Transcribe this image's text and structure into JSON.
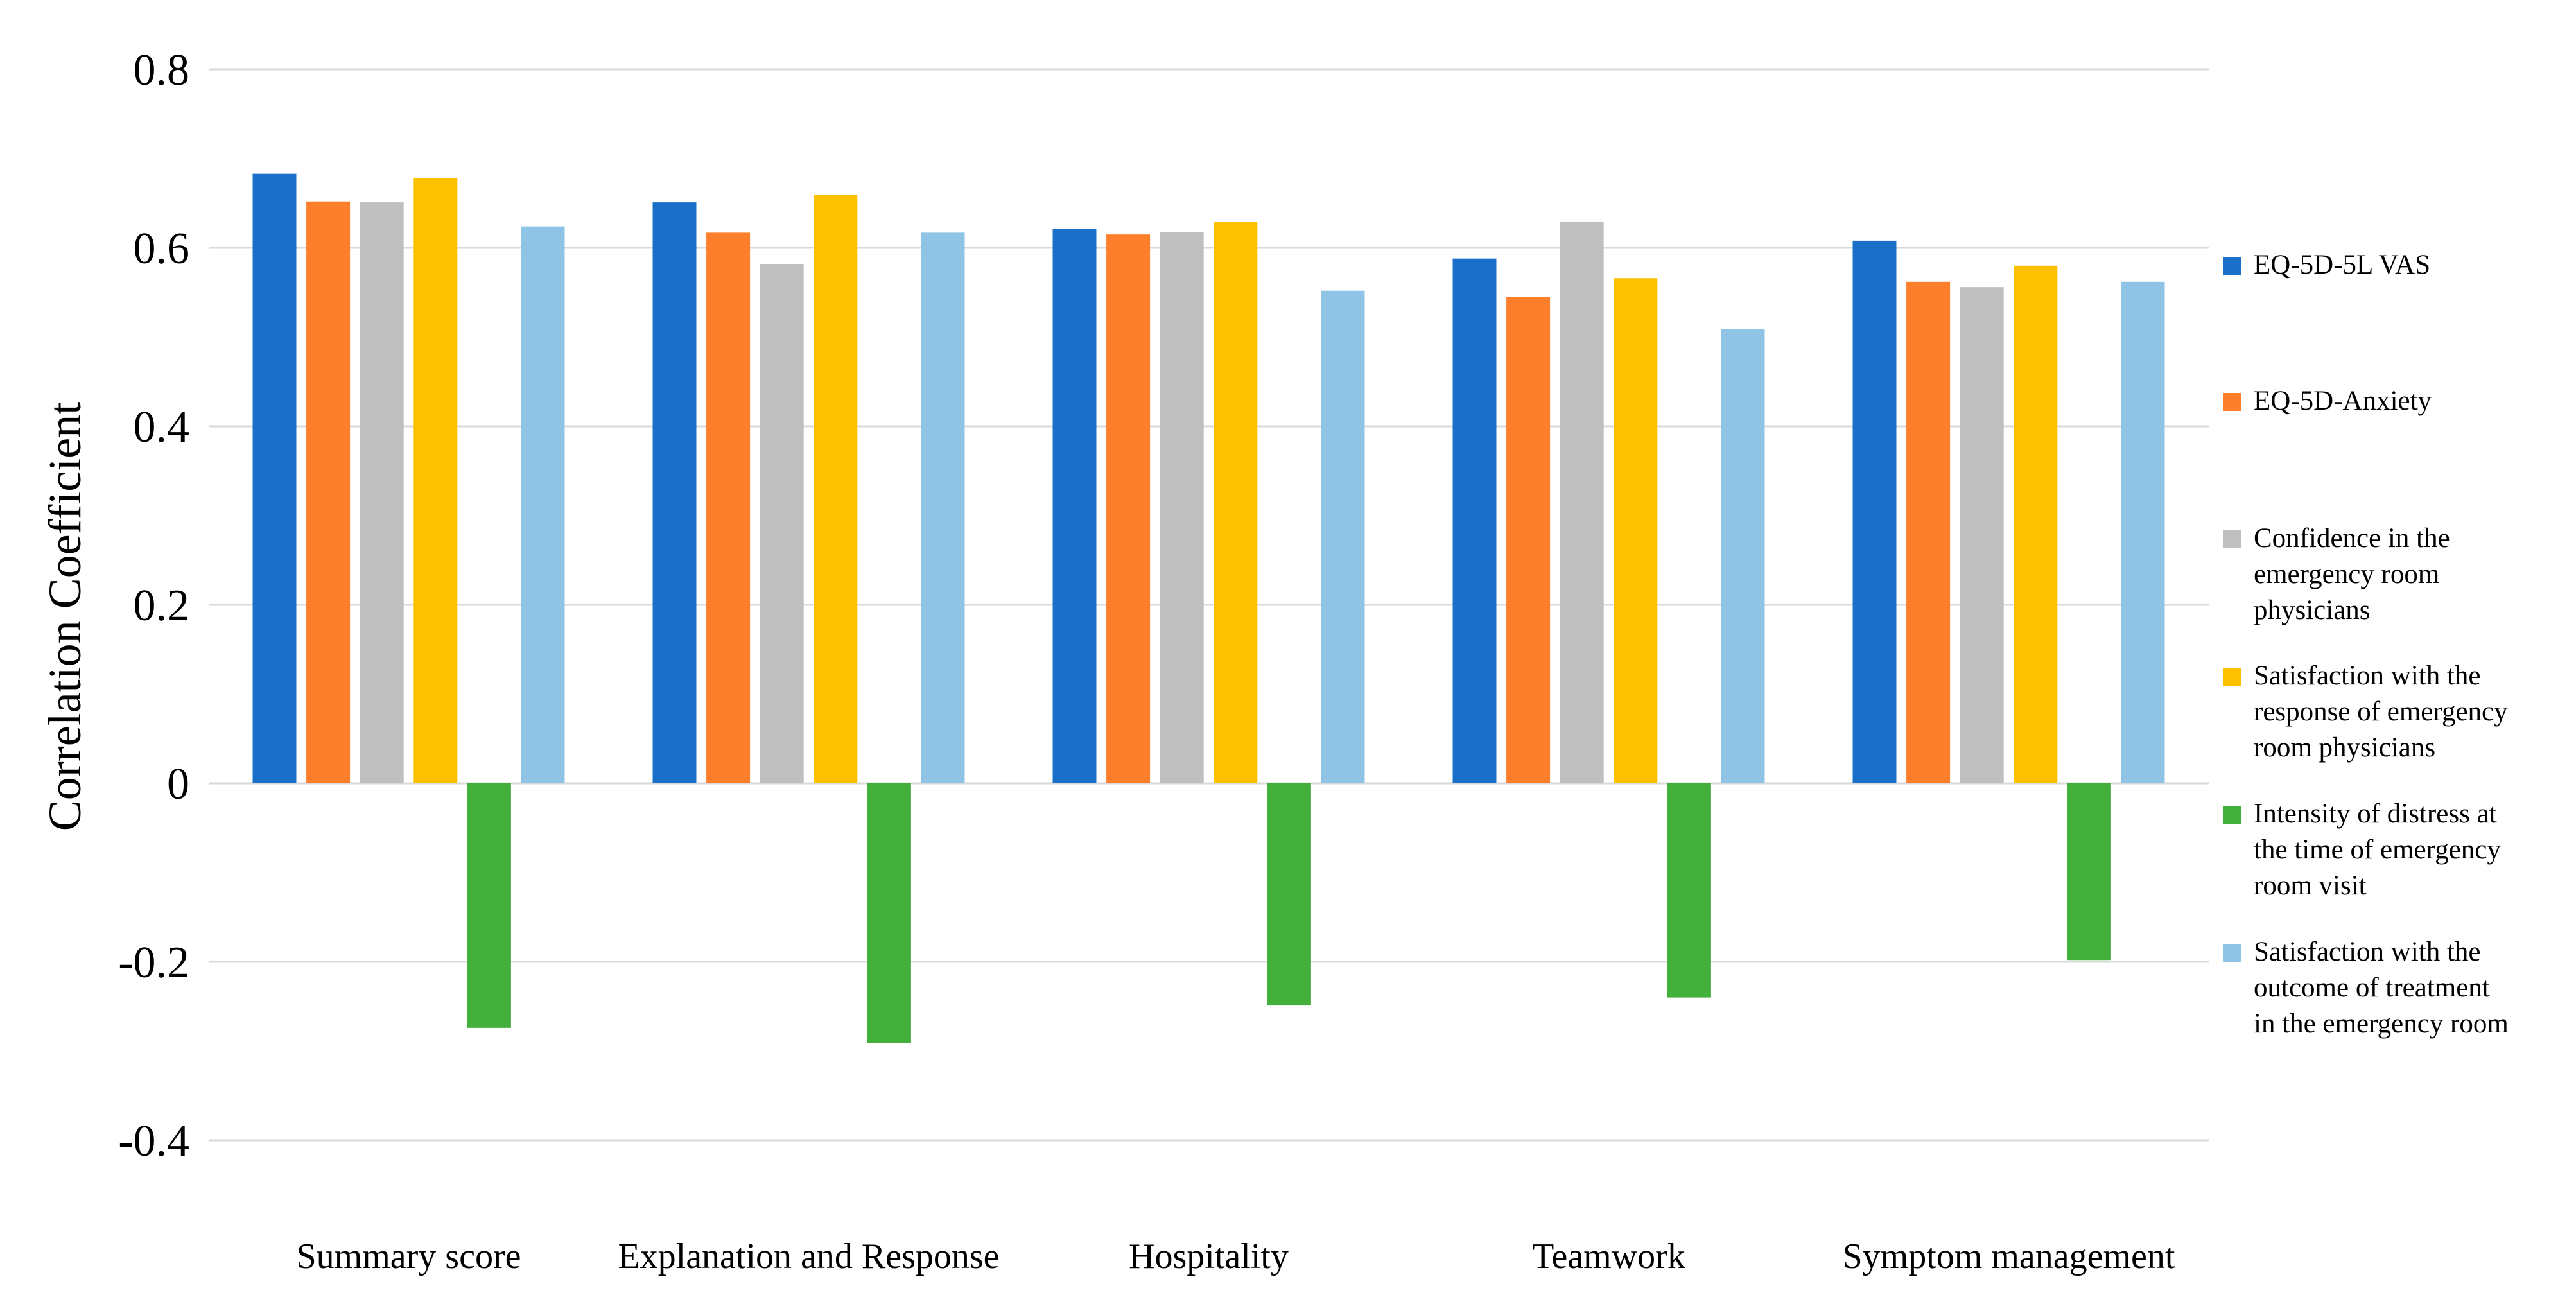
{
  "chart_data": {
    "type": "bar",
    "title": "",
    "xlabel": "",
    "ylabel": "Correlation Coefficient",
    "ylim": [
      -0.4,
      0.8
    ],
    "yticks": [
      0.8,
      0.6,
      0.4,
      0.2,
      0,
      -0.2,
      -0.4
    ],
    "ytick_labels": [
      "0.8",
      "0.6",
      "0.4",
      "0.2",
      "0",
      "-0.2",
      "-0.4"
    ],
    "grid": true,
    "legend_position": "right",
    "categories": [
      "Summary score",
      "Explanation and Response",
      "Hospitality",
      "Teamwork",
      "Symptom management"
    ],
    "series": [
      {
        "name": "EQ-5D-5L VAS",
        "legend_lines": [
          "EQ-5D-5L VAS"
        ],
        "color": "#1a70c8",
        "values": [
          0.683,
          0.651,
          0.621,
          0.588,
          0.608
        ]
      },
      {
        "name": "EQ-5D-Anxiety",
        "legend_lines": [
          "EQ-5D-Anxiety"
        ],
        "color": "#fd7f2c",
        "values": [
          0.652,
          0.617,
          0.615,
          0.545,
          0.562
        ]
      },
      {
        "name": "Confidence in the emergency room physicians",
        "legend_lines": [
          "Confidence in the",
          "emergency room",
          "physicians"
        ],
        "color": "#bfbfbf",
        "values": [
          0.651,
          0.582,
          0.618,
          0.629,
          0.556
        ]
      },
      {
        "name": "Satisfaction with the response of emergency room physicians",
        "legend_lines": [
          "Satisfaction with the",
          "response of emergency",
          "room physicians"
        ],
        "color": "#fec100",
        "values": [
          0.678,
          0.659,
          0.629,
          0.566,
          0.58
        ]
      },
      {
        "name": "Intensity of distress at the time of emergency room visit",
        "legend_lines": [
          "Intensity of distress at",
          "the time of emergency",
          "room visit"
        ],
        "color": "#44b03c",
        "values": [
          -0.274,
          -0.291,
          -0.249,
          -0.24,
          -0.198
        ]
      },
      {
        "name": "Satisfaction with the outcome of treatment in the emergency room",
        "legend_lines": [
          "Satisfaction with the",
          "outcome of treatment",
          "in the emergency room"
        ],
        "color": "#8fc4e6",
        "values": [
          0.624,
          0.617,
          0.552,
          0.509,
          0.562
        ]
      }
    ]
  }
}
